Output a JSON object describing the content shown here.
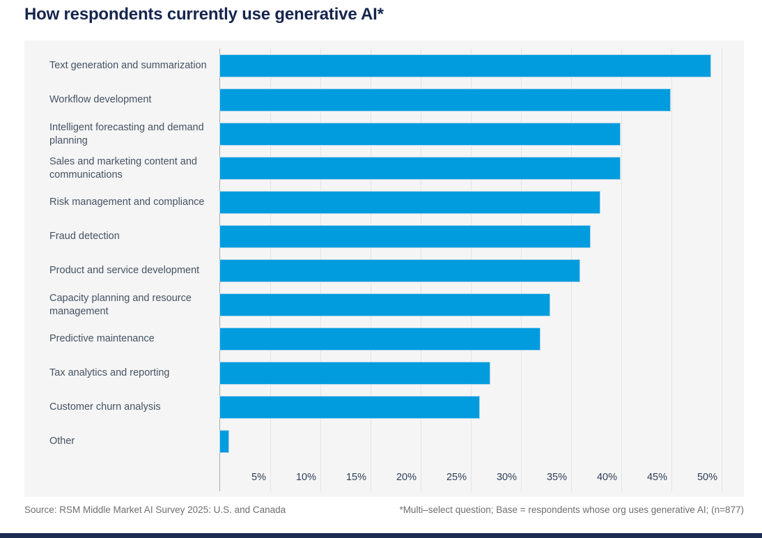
{
  "title": "How respondents currently use generative AI*",
  "footer": {
    "source": "Source: RSM Middle Market AI Survey 2025: U.S. and Canada",
    "note": "*Multi–select question; Base = respondents whose org uses generative AI; (n=877)"
  },
  "colors": {
    "bar": "#009CDE",
    "bar_border": "#aed4ec",
    "title": "#16254e",
    "label": "#455263",
    "tick": "#2e3d57",
    "panel_bg": "#f5f5f5",
    "gridline": "#e3e4e6",
    "axis": "#a9abae",
    "footer_text": "#6e6e6e",
    "bottom_bar": "#1d2c51"
  },
  "chart_data": {
    "type": "bar",
    "orientation": "horizontal",
    "title": "How respondents currently use generative AI*",
    "categories": [
      "Text generation and summarization",
      "Workflow development",
      "Intelligent forecasting and demand planning",
      "Sales and marketing content and communications",
      "Risk management and compliance",
      "Fraud detection",
      "Product and service development",
      "Capacity planning and resource management",
      "Predictive maintenance",
      "Tax analytics and reporting",
      "Customer churn analysis",
      "Other"
    ],
    "values": [
      49,
      45,
      40,
      40,
      38,
      37,
      36,
      33,
      32,
      27,
      26,
      1
    ],
    "unit": "%",
    "xlim": [
      0,
      52.3
    ],
    "tick_step": 5,
    "x_ticks": [
      "5%",
      "10%",
      "15%",
      "20%",
      "25%",
      "30%",
      "35%",
      "40%",
      "45%",
      "50%"
    ],
    "grid": true,
    "legend": false
  }
}
